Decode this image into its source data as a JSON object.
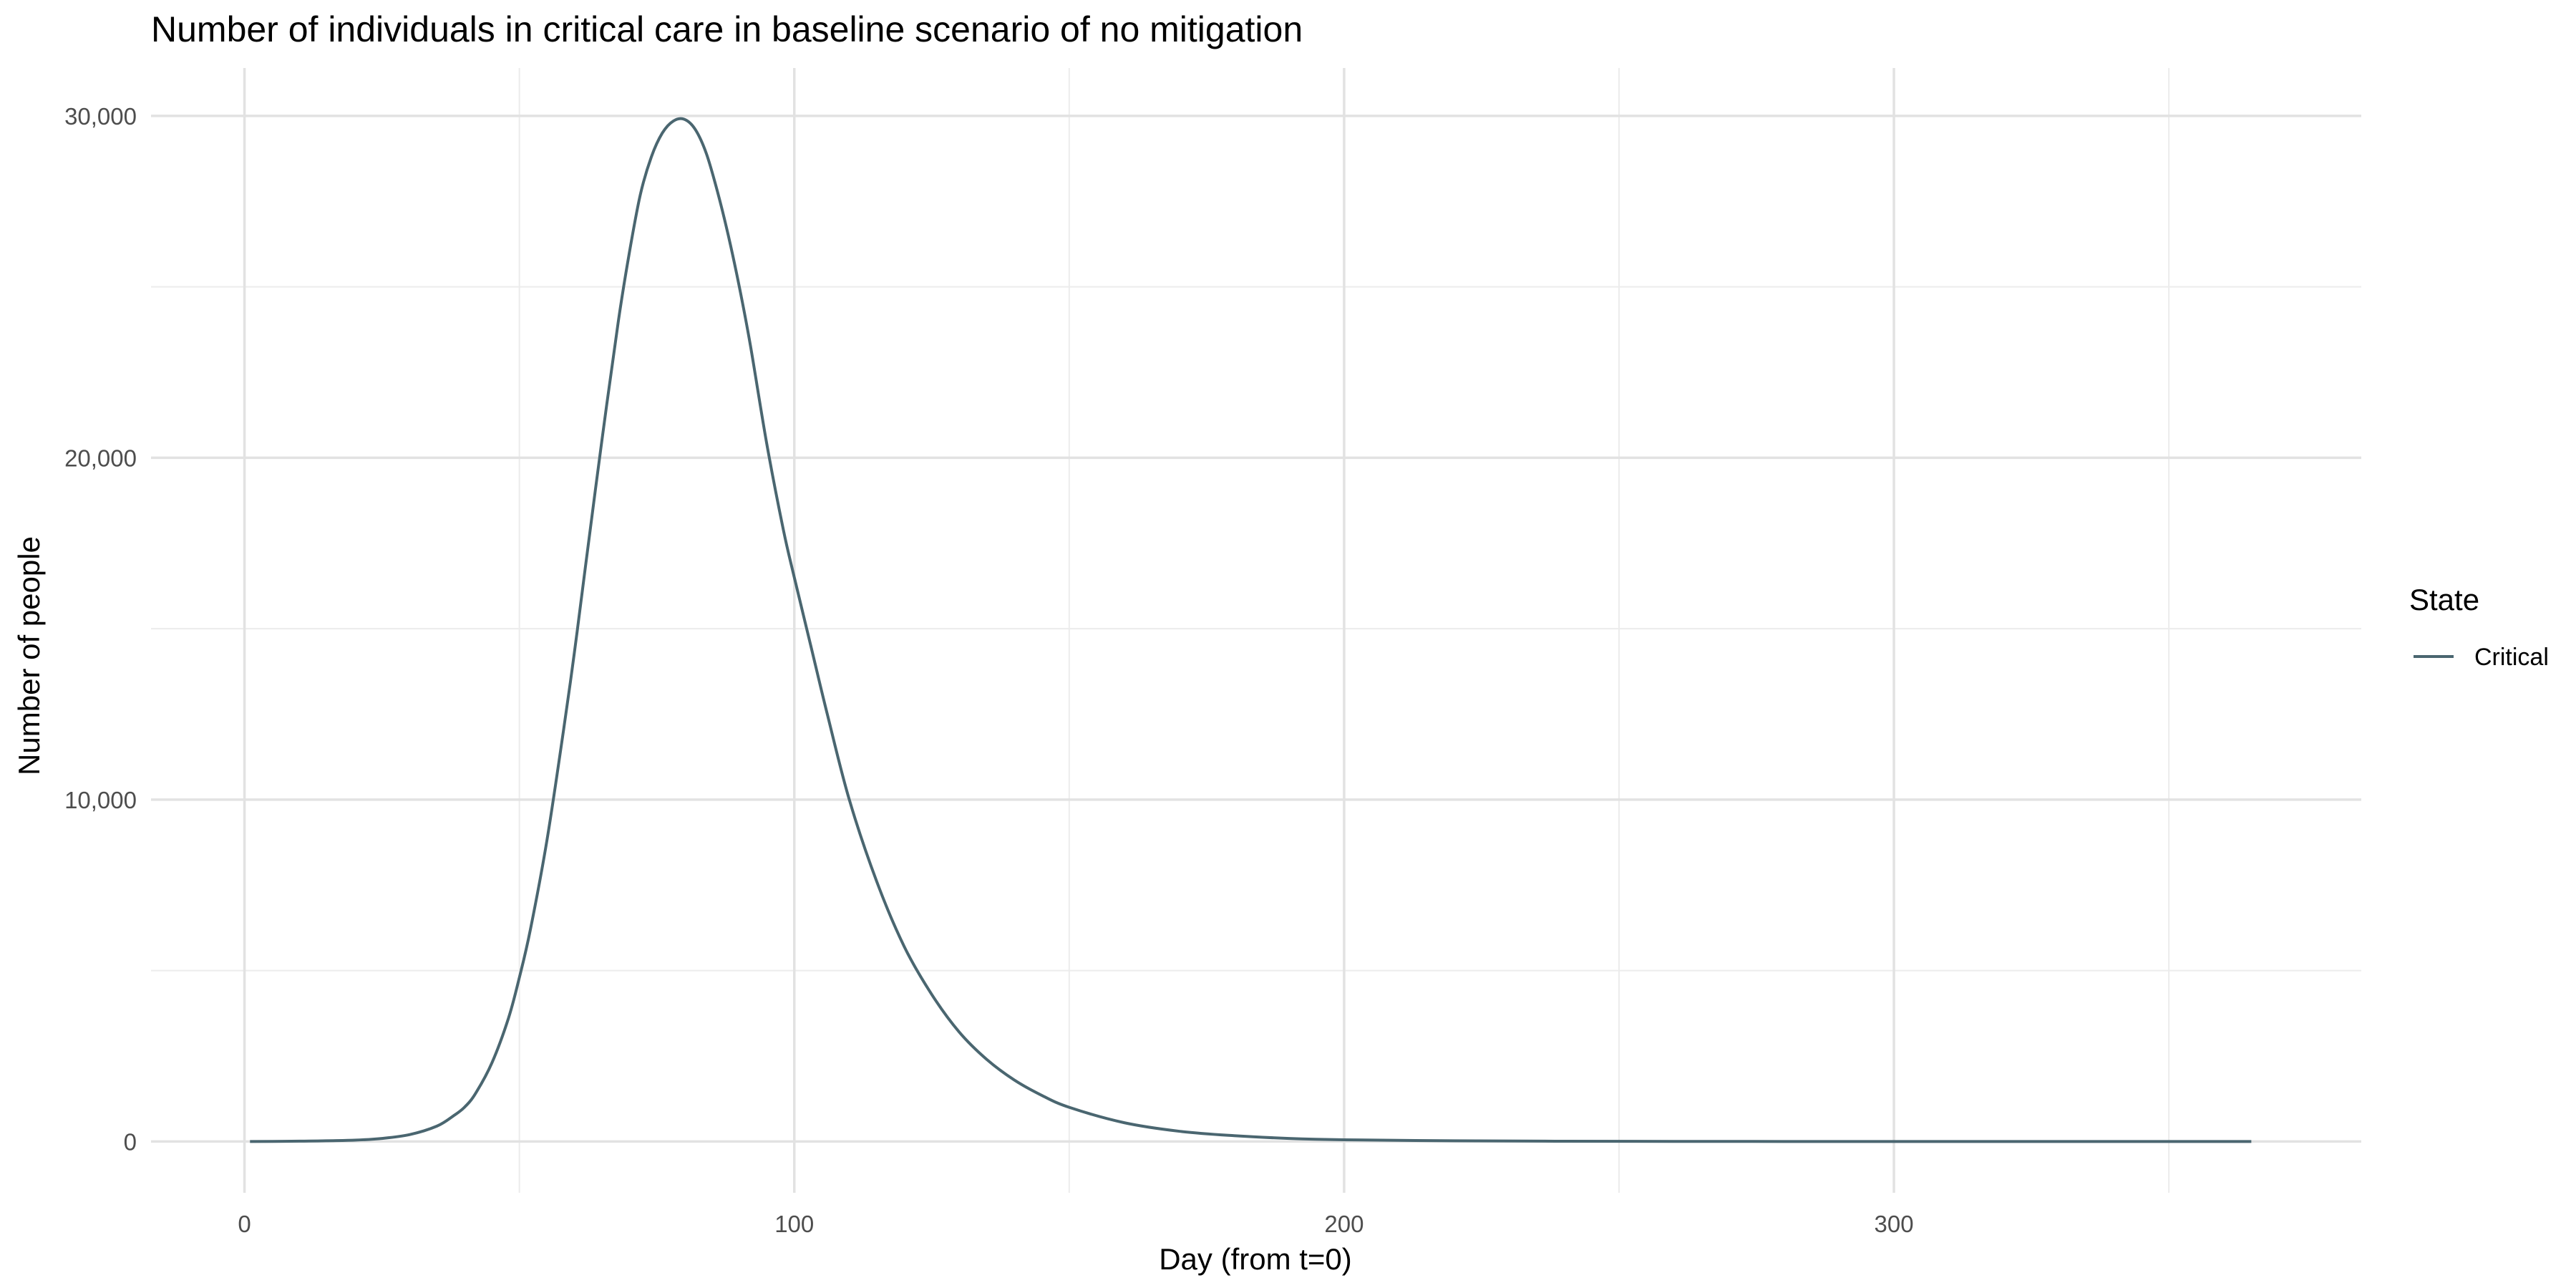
{
  "chart_data": {
    "type": "line",
    "title": "Number of individuals in critical care in baseline scenario of no mitigation",
    "xlabel": "Day (from t=0)",
    "ylabel": "Number of people",
    "xlim": [
      -17,
      385
    ],
    "ylim": [
      -1500,
      31400
    ],
    "x_ticks": [
      0,
      100,
      200,
      300
    ],
    "x_tick_labels": [
      "0",
      "100",
      "200",
      "300"
    ],
    "y_ticks": [
      0,
      10000,
      20000,
      30000
    ],
    "y_tick_labels": [
      "0",
      "10,000",
      "20,000",
      "30,000"
    ],
    "grid": true,
    "legend": {
      "title": "State",
      "position": "right"
    },
    "series": [
      {
        "name": "Critical",
        "color": "#4a6670",
        "x": [
          1,
          10,
          20,
          25,
          30,
          35,
          38,
          40,
          42,
          45,
          48,
          50,
          52,
          55,
          58,
          60,
          62,
          65,
          68,
          70,
          72,
          74,
          76,
          78,
          80,
          82,
          84,
          86,
          88,
          90,
          92,
          95,
          98,
          100,
          103,
          106,
          110,
          115,
          120,
          125,
          130,
          135,
          140,
          145,
          150,
          160,
          170,
          180,
          190,
          200,
          220,
          240,
          260,
          280,
          300,
          330,
          365
        ],
        "y": [
          0,
          10,
          40,
          90,
          200,
          450,
          750,
          1000,
          1400,
          2300,
          3600,
          4800,
          6200,
          8800,
          12000,
          14300,
          16800,
          20500,
          24000,
          26000,
          27700,
          28800,
          29500,
          29850,
          29900,
          29600,
          28900,
          27800,
          26500,
          25000,
          23300,
          20400,
          17900,
          16500,
          14500,
          12500,
          10000,
          7600,
          5700,
          4300,
          3200,
          2400,
          1800,
          1350,
          1000,
          550,
          300,
          170,
          90,
          50,
          20,
          8,
          3,
          1,
          0,
          0,
          0
        ]
      }
    ]
  }
}
